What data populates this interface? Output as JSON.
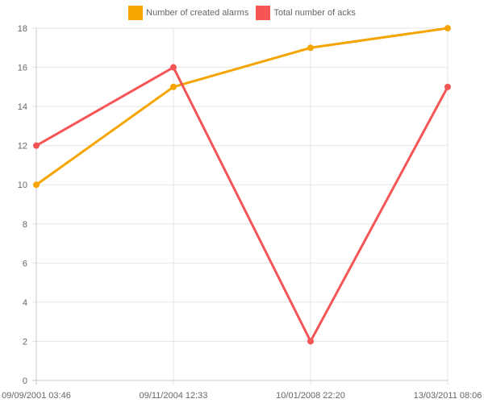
{
  "chart_data": {
    "type": "line",
    "title": "",
    "xlabel": "",
    "ylabel": "",
    "categories": [
      "09/09/2001 03:46",
      "09/11/2004 12:33",
      "10/01/2008 22:20",
      "13/03/2011 08:06"
    ],
    "ylim": [
      0,
      18
    ],
    "yticks": [
      0,
      2,
      4,
      6,
      8,
      10,
      12,
      14,
      16,
      18
    ],
    "grid": true,
    "legend_position": "top-center",
    "series": [
      {
        "name": "Number of created alarms",
        "color": "#F5A400",
        "values": [
          10,
          15,
          17,
          18
        ]
      },
      {
        "name": "Total number of acks",
        "color": "#F55555",
        "values": [
          12,
          16,
          2,
          15
        ]
      }
    ]
  }
}
